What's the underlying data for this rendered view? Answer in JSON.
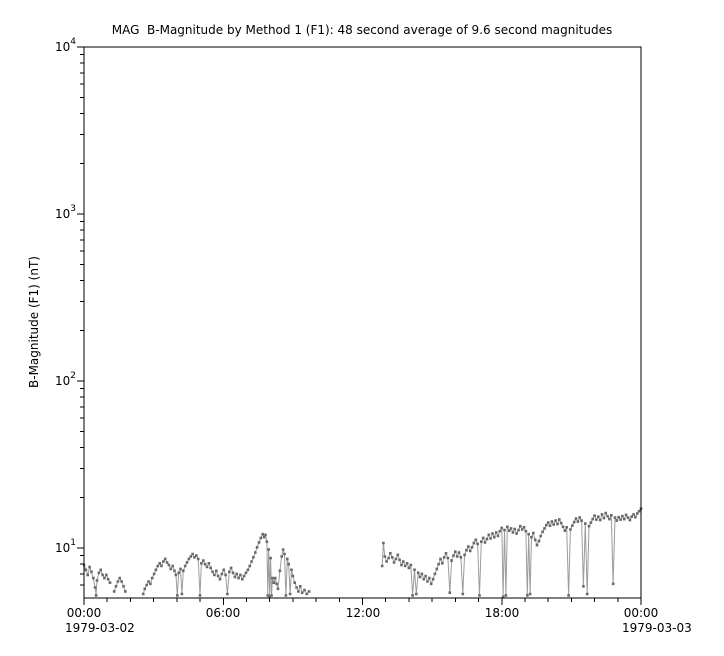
{
  "chart_data": {
    "type": "line",
    "title": "MAG  B-Magnitude by Method 1 (F1): 48 second average of 9.6 second magnitudes",
    "ylabel": "B-Magnitude (F1) (nT)",
    "grid": false,
    "legend": "none",
    "x_axis": {
      "unit": "time of day (hours)",
      "range_hours": [
        0,
        24
      ],
      "major_ticks": [
        {
          "hours": 0,
          "label": "00:00"
        },
        {
          "hours": 6,
          "label": "06:00"
        },
        {
          "hours": 12,
          "label": "12:00"
        },
        {
          "hours": 18,
          "label": "18:00"
        },
        {
          "hours": 24,
          "label": "00:00"
        }
      ],
      "minor_tick_interval_hours": 1,
      "date_left": "1979-03-02",
      "date_right": "1979-03-03"
    },
    "y_axis": {
      "scale": "log",
      "unit": "nT",
      "range": [
        5.0,
        10000
      ],
      "tick_label_base": "10",
      "major_tick_exponents": [
        1,
        2,
        3,
        4
      ]
    },
    "series": [
      {
        "name": "B-Magnitude (F1) 48 second average",
        "marker": "square",
        "marker_color": "#696969",
        "line_color": "#9c9c9c",
        "segments": [
          [
            [
              0.0,
              7.9
            ],
            [
              0.08,
              7.4
            ],
            [
              0.16,
              6.9
            ],
            [
              0.24,
              7.7
            ],
            [
              0.32,
              7.2
            ],
            [
              0.4,
              6.6
            ],
            [
              0.48,
              5.8
            ],
            [
              0.52,
              5.2
            ],
            [
              0.56,
              6.4
            ],
            [
              0.64,
              7.1
            ],
            [
              0.72,
              7.4
            ],
            [
              0.8,
              6.9
            ],
            [
              0.88,
              6.6
            ],
            [
              0.96,
              6.9
            ],
            [
              1.04,
              6.5
            ],
            [
              1.12,
              6.2
            ]
          ],
          [
            [
              1.3,
              5.5
            ],
            [
              1.38,
              5.9
            ],
            [
              1.46,
              6.3
            ],
            [
              1.54,
              6.6
            ],
            [
              1.62,
              6.3
            ],
            [
              1.7,
              5.9
            ],
            [
              1.78,
              5.5
            ]
          ],
          [
            [
              2.55,
              5.3
            ],
            [
              2.62,
              5.7
            ],
            [
              2.7,
              6.0
            ],
            [
              2.78,
              6.3
            ],
            [
              2.86,
              6.1
            ],
            [
              2.94,
              6.6
            ],
            [
              3.02,
              7.0
            ],
            [
              3.1,
              7.4
            ],
            [
              3.18,
              7.8
            ],
            [
              3.26,
              8.1
            ],
            [
              3.34,
              7.8
            ],
            [
              3.42,
              8.3
            ],
            [
              3.5,
              8.6
            ],
            [
              3.58,
              8.2
            ],
            [
              3.66,
              7.9
            ],
            [
              3.74,
              7.5
            ],
            [
              3.82,
              7.8
            ],
            [
              3.9,
              7.3
            ],
            [
              3.96,
              6.9
            ],
            [
              4.02,
              5.2
            ],
            [
              4.08,
              7.1
            ],
            [
              4.16,
              7.5
            ],
            [
              4.22,
              5.3
            ],
            [
              4.28,
              7.3
            ],
            [
              4.36,
              7.8
            ],
            [
              4.44,
              8.2
            ],
            [
              4.52,
              8.6
            ],
            [
              4.6,
              8.9
            ],
            [
              4.68,
              9.2
            ],
            [
              4.76,
              8.8
            ],
            [
              4.84,
              9.0
            ],
            [
              4.92,
              8.6
            ],
            [
              5.0,
              5.2
            ],
            [
              5.06,
              8.1
            ],
            [
              5.14,
              8.4
            ],
            [
              5.22,
              8.0
            ],
            [
              5.3,
              7.7
            ],
            [
              5.38,
              8.1
            ],
            [
              5.46,
              7.6
            ],
            [
              5.54,
              7.2
            ],
            [
              5.62,
              6.9
            ],
            [
              5.7,
              7.3
            ],
            [
              5.78,
              6.8
            ],
            [
              5.86,
              6.5
            ],
            [
              5.94,
              7.0
            ],
            [
              6.02,
              7.4
            ],
            [
              6.1,
              6.9
            ],
            [
              6.18,
              5.3
            ],
            [
              6.26,
              7.2
            ],
            [
              6.34,
              7.6
            ],
            [
              6.42,
              7.1
            ],
            [
              6.5,
              6.7
            ],
            [
              6.58,
              7.0
            ],
            [
              6.66,
              6.6
            ],
            [
              6.74,
              6.9
            ],
            [
              6.82,
              6.5
            ],
            [
              6.9,
              6.8
            ],
            [
              6.98,
              7.1
            ],
            [
              7.06,
              7.4
            ],
            [
              7.14,
              7.8
            ],
            [
              7.22,
              8.3
            ],
            [
              7.3,
              8.8
            ],
            [
              7.38,
              9.4
            ],
            [
              7.46,
              10.1
            ],
            [
              7.54,
              10.8
            ],
            [
              7.62,
              11.5
            ],
            [
              7.7,
              12.1
            ],
            [
              7.76,
              11.6
            ],
            [
              7.82,
              12.0
            ],
            [
              7.88,
              10.9
            ],
            [
              7.92,
              5.2
            ],
            [
              7.96,
              9.8
            ],
            [
              8.0,
              5.1
            ],
            [
              8.04,
              8.7
            ],
            [
              8.08,
              5.2
            ],
            [
              8.12,
              6.6
            ],
            [
              8.18,
              6.2
            ],
            [
              8.24,
              6.6
            ],
            [
              8.3,
              6.1
            ],
            [
              8.36,
              5.7
            ],
            [
              8.44,
              7.3
            ],
            [
              8.52,
              8.9
            ],
            [
              8.58,
              9.8
            ],
            [
              8.64,
              9.2
            ],
            [
              8.7,
              5.2
            ],
            [
              8.76,
              8.6
            ],
            [
              8.82,
              8.0
            ],
            [
              8.88,
              5.3
            ],
            [
              8.94,
              7.4
            ],
            [
              9.0,
              6.8
            ],
            [
              9.08,
              6.2
            ],
            [
              9.16,
              5.8
            ],
            [
              9.24,
              5.5
            ],
            [
              9.32,
              5.9
            ],
            [
              9.4,
              5.4
            ],
            [
              9.5,
              5.6
            ],
            [
              9.6,
              5.3
            ],
            [
              9.7,
              5.5
            ]
          ],
          [
            [
              12.85,
              7.8
            ],
            [
              12.9,
              10.7
            ],
            [
              12.96,
              8.9
            ],
            [
              13.04,
              8.3
            ],
            [
              13.12,
              8.7
            ],
            [
              13.2,
              9.3
            ],
            [
              13.28,
              8.8
            ],
            [
              13.36,
              8.2
            ],
            [
              13.44,
              8.6
            ],
            [
              13.52,
              9.1
            ],
            [
              13.6,
              8.5
            ],
            [
              13.68,
              7.9
            ],
            [
              13.76,
              8.3
            ],
            [
              13.84,
              7.8
            ],
            [
              13.92,
              8.1
            ],
            [
              14.0,
              7.6
            ],
            [
              14.08,
              7.9
            ],
            [
              14.16,
              5.2
            ],
            [
              14.24,
              7.4
            ],
            [
              14.32,
              5.3
            ],
            [
              14.4,
              7.1
            ],
            [
              14.48,
              6.7
            ],
            [
              14.56,
              7.0
            ],
            [
              14.64,
              6.5
            ],
            [
              14.72,
              6.8
            ],
            [
              14.8,
              6.3
            ],
            [
              14.88,
              6.6
            ],
            [
              14.96,
              6.1
            ],
            [
              15.04,
              6.5
            ],
            [
              15.12,
              7.0
            ],
            [
              15.2,
              7.5
            ],
            [
              15.28,
              8.0
            ],
            [
              15.36,
              8.6
            ],
            [
              15.44,
              8.1
            ],
            [
              15.52,
              8.8
            ],
            [
              15.6,
              9.3
            ],
            [
              15.68,
              8.7
            ],
            [
              15.76,
              5.4
            ],
            [
              15.84,
              8.4
            ],
            [
              15.92,
              9.0
            ],
            [
              16.0,
              9.5
            ],
            [
              16.08,
              8.9
            ],
            [
              16.16,
              9.4
            ],
            [
              16.24,
              8.8
            ],
            [
              16.32,
              5.3
            ],
            [
              16.4,
              9.1
            ],
            [
              16.48,
              9.7
            ],
            [
              16.56,
              10.2
            ],
            [
              16.64,
              9.6
            ],
            [
              16.72,
              10.1
            ],
            [
              16.8,
              10.7
            ],
            [
              16.88,
              11.2
            ],
            [
              16.96,
              10.6
            ],
            [
              17.04,
              5.2
            ],
            [
              17.12,
              10.9
            ],
            [
              17.2,
              11.5
            ],
            [
              17.28,
              10.8
            ],
            [
              17.36,
              11.3
            ],
            [
              17.44,
              12.0
            ],
            [
              17.52,
              11.4
            ],
            [
              17.6,
              12.2
            ],
            [
              17.68,
              11.6
            ],
            [
              17.76,
              12.4
            ],
            [
              17.84,
              11.8
            ],
            [
              17.92,
              12.6
            ],
            [
              18.0,
              13.2
            ],
            [
              18.06,
              5.1
            ],
            [
              18.12,
              12.8
            ],
            [
              18.18,
              5.2
            ],
            [
              18.24,
              13.4
            ],
            [
              18.32,
              12.7
            ],
            [
              18.4,
              13.1
            ],
            [
              18.48,
              12.4
            ],
            [
              18.56,
              13.0
            ],
            [
              18.64,
              12.2
            ],
            [
              18.72,
              12.8
            ],
            [
              18.8,
              13.5
            ],
            [
              18.88,
              12.9
            ],
            [
              18.96,
              13.3
            ],
            [
              19.04,
              12.6
            ],
            [
              19.1,
              5.2
            ],
            [
              19.16,
              12.1
            ],
            [
              19.22,
              5.3
            ],
            [
              19.28,
              11.6
            ],
            [
              19.36,
              12.3
            ],
            [
              19.44,
              11.2
            ],
            [
              19.52,
              10.4
            ],
            [
              19.6,
              11.0
            ],
            [
              19.68,
              11.8
            ],
            [
              19.76,
              12.5
            ],
            [
              19.84,
              13.1
            ],
            [
              19.92,
              13.7
            ],
            [
              20.0,
              14.2
            ],
            [
              20.08,
              13.6
            ],
            [
              20.16,
              14.4
            ],
            [
              20.24,
              13.8
            ],
            [
              20.32,
              14.6
            ],
            [
              20.4,
              13.9
            ],
            [
              20.48,
              14.8
            ],
            [
              20.56,
              14.1
            ],
            [
              20.64,
              13.4
            ],
            [
              20.72,
              12.7
            ],
            [
              20.8,
              13.3
            ],
            [
              20.88,
              5.2
            ],
            [
              20.96,
              12.9
            ],
            [
              21.04,
              13.6
            ],
            [
              21.12,
              14.3
            ],
            [
              21.2,
              15.0
            ],
            [
              21.28,
              14.4
            ],
            [
              21.36,
              15.2
            ],
            [
              21.44,
              14.6
            ],
            [
              21.52,
              5.9
            ],
            [
              21.6,
              14.0
            ],
            [
              21.68,
              5.3
            ],
            [
              21.76,
              13.5
            ],
            [
              21.84,
              14.2
            ],
            [
              21.92,
              14.9
            ],
            [
              22.0,
              15.6
            ],
            [
              22.08,
              14.8
            ],
            [
              22.16,
              15.4
            ],
            [
              22.24,
              14.7
            ],
            [
              22.32,
              15.9
            ],
            [
              22.4,
              15.1
            ],
            [
              22.48,
              16.2
            ],
            [
              22.56,
              15.5
            ],
            [
              22.64,
              14.9
            ],
            [
              22.72,
              15.7
            ],
            [
              22.8,
              6.1
            ],
            [
              22.88,
              15.2
            ],
            [
              22.96,
              14.6
            ],
            [
              23.04,
              15.3
            ],
            [
              23.12,
              14.8
            ],
            [
              23.2,
              15.5
            ],
            [
              23.28,
              14.9
            ],
            [
              23.36,
              15.8
            ],
            [
              23.44,
              15.2
            ],
            [
              23.52,
              14.7
            ],
            [
              23.6,
              15.4
            ],
            [
              23.68,
              15.9
            ],
            [
              23.76,
              15.3
            ],
            [
              23.84,
              16.1
            ],
            [
              23.92,
              16.6
            ],
            [
              24.0,
              17.2
            ]
          ]
        ]
      }
    ],
    "colors": {
      "background": "#ffffff",
      "axis": "#000000",
      "series_marker": "#696969",
      "series_line": "#9c9c9c"
    }
  }
}
